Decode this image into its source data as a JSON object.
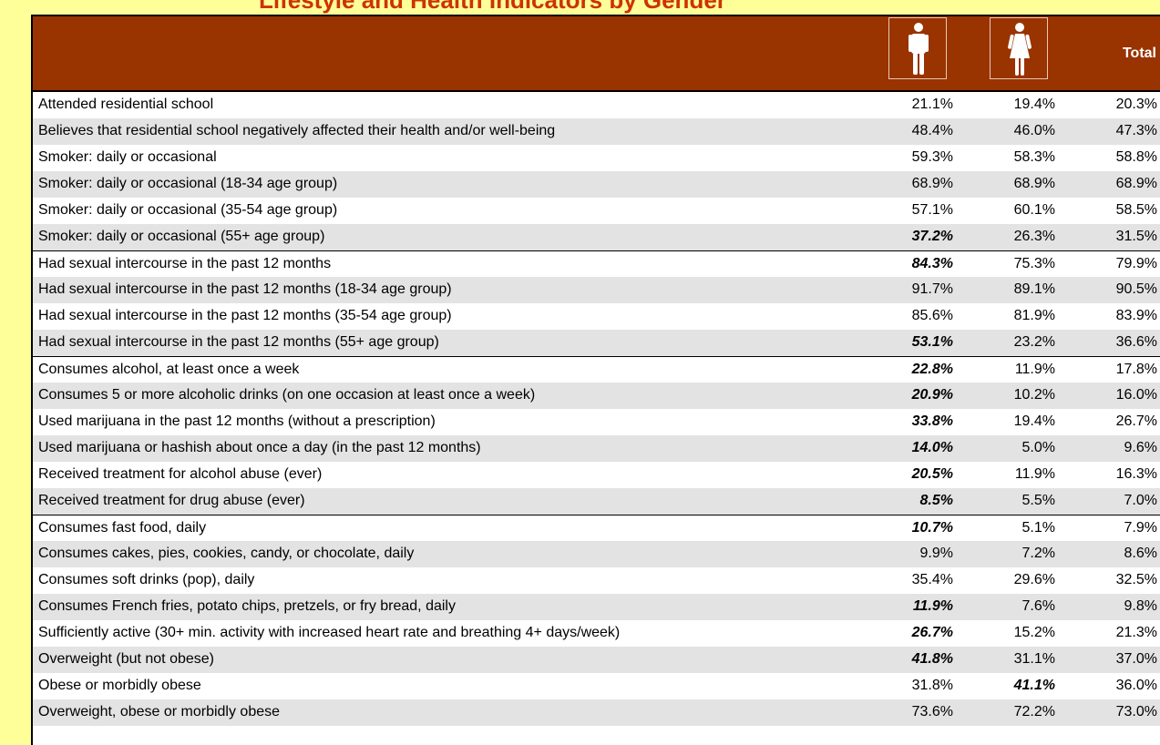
{
  "title": "Lifestyle and Health Indicators by Gender",
  "header": {
    "male_icon": "male-figure-icon",
    "female_icon": "female-figure-icon",
    "total_label": "Total"
  },
  "colors": {
    "header_bg": "#993300",
    "page_bg": "#ffff99",
    "row_alt": "#e3e3e3",
    "title": "#cc3300"
  },
  "rows": [
    {
      "label": "Attended residential school",
      "male": "21.1%",
      "female": "19.4%",
      "total": "20.3%",
      "male_emph": false,
      "female_emph": false
    },
    {
      "label": "Believes that residential school negatively affected their health and/or well-being",
      "male": "48.4%",
      "female": "46.0%",
      "total": "47.3%",
      "male_emph": false,
      "female_emph": false
    },
    {
      "label": "Smoker: daily or occasional",
      "male": "59.3%",
      "female": "58.3%",
      "total": "58.8%",
      "male_emph": false,
      "female_emph": false
    },
    {
      "label": "Smoker: daily or occasional (18-34 age group)",
      "male": "68.9%",
      "female": "68.9%",
      "total": "68.9%",
      "male_emph": false,
      "female_emph": false
    },
    {
      "label": "Smoker: daily or occasional (35-54 age group)",
      "male": "57.1%",
      "female": "60.1%",
      "total": "58.5%",
      "male_emph": false,
      "female_emph": false
    },
    {
      "label": "Smoker: daily or occasional (55+ age group)",
      "male": "37.2%",
      "female": "26.3%",
      "total": "31.5%",
      "male_emph": true,
      "female_emph": false
    },
    {
      "label": "Had sexual intercourse in the past 12 months",
      "male": "84.3%",
      "female": "75.3%",
      "total": "79.9%",
      "male_emph": true,
      "female_emph": false
    },
    {
      "label": "Had sexual intercourse in the past 12 months (18-34 age group)",
      "male": "91.7%",
      "female": "89.1%",
      "total": "90.5%",
      "male_emph": false,
      "female_emph": false
    },
    {
      "label": "Had sexual intercourse in the past 12 months (35-54 age group)",
      "male": "85.6%",
      "female": "81.9%",
      "total": "83.9%",
      "male_emph": false,
      "female_emph": false
    },
    {
      "label": "Had sexual intercourse in the past 12 months (55+ age group)",
      "male": "53.1%",
      "female": "23.2%",
      "total": "36.6%",
      "male_emph": true,
      "female_emph": false
    },
    {
      "label": "Consumes alcohol, at least once a week",
      "male": "22.8%",
      "female": "11.9%",
      "total": "17.8%",
      "male_emph": true,
      "female_emph": false
    },
    {
      "label": "Consumes 5 or more alcoholic drinks (on one occasion at least once a week)",
      "male": "20.9%",
      "female": "10.2%",
      "total": "16.0%",
      "male_emph": true,
      "female_emph": false
    },
    {
      "label": "Used marijuana in the past 12 months (without a prescription)",
      "male": "33.8%",
      "female": "19.4%",
      "total": "26.7%",
      "male_emph": true,
      "female_emph": false
    },
    {
      "label": "Used marijuana or hashish about once a day (in the past 12 months)",
      "male": "14.0%",
      "female": "5.0%",
      "total": "9.6%",
      "male_emph": true,
      "female_emph": false
    },
    {
      "label": "Received treatment for alcohol abuse (ever)",
      "male": "20.5%",
      "female": "11.9%",
      "total": "16.3%",
      "male_emph": true,
      "female_emph": false
    },
    {
      "label": "Received treatment for drug abuse (ever)",
      "male": "8.5%",
      "female": "5.5%",
      "total": "7.0%",
      "male_emph": true,
      "female_emph": false
    },
    {
      "label": "Consumes fast food, daily",
      "male": "10.7%",
      "female": "5.1%",
      "total": "7.9%",
      "male_emph": true,
      "female_emph": false
    },
    {
      "label": "Consumes cakes, pies, cookies, candy, or chocolate, daily",
      "male": "9.9%",
      "female": "7.2%",
      "total": "8.6%",
      "male_emph": false,
      "female_emph": false
    },
    {
      "label": "Consumes soft drinks (pop), daily",
      "male": "35.4%",
      "female": "29.6%",
      "total": "32.5%",
      "male_emph": false,
      "female_emph": false
    },
    {
      "label": "Consumes French fries, potato chips, pretzels, or fry bread, daily",
      "male": "11.9%",
      "female": "7.6%",
      "total": "9.8%",
      "male_emph": true,
      "female_emph": false
    },
    {
      "label": "Sufficiently active (30+ min. activity with increased heart rate and breathing 4+ days/week)",
      "male": "26.7%",
      "female": "15.2%",
      "total": "21.3%",
      "male_emph": true,
      "female_emph": false
    },
    {
      "label": "Overweight (but not obese)",
      "male": "41.8%",
      "female": "31.1%",
      "total": "37.0%",
      "male_emph": true,
      "female_emph": false
    },
    {
      "label": "Obese or morbidly obese",
      "male": "31.8%",
      "female": "41.1%",
      "total": "36.0%",
      "male_emph": false,
      "female_emph": true
    },
    {
      "label": "Overweight, obese or morbidly obese",
      "male": "73.6%",
      "female": "72.2%",
      "total": "73.0%",
      "male_emph": false,
      "female_emph": false
    }
  ]
}
